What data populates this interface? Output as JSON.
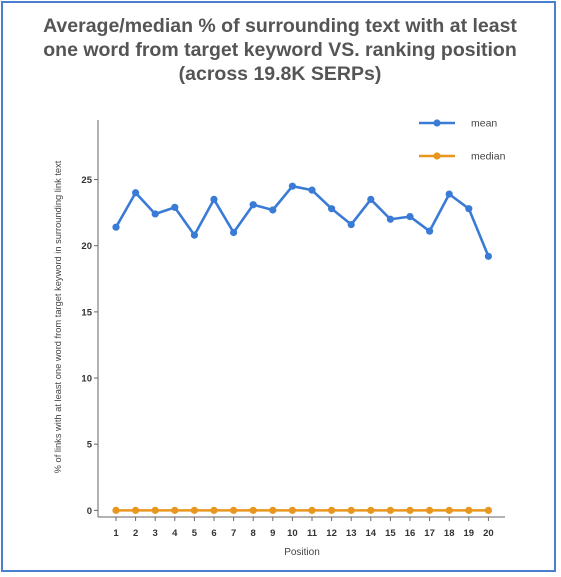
{
  "chart_data": {
    "type": "line",
    "title_lines": [
      "Average/median % of surrounding text with at least",
      "one word from target keyword VS. ranking position",
      "(across 19.8K SERPs)"
    ],
    "xlabel": "Position",
    "ylabel": "% of links with at least one word from target keyword in surrounding link text",
    "x": [
      1,
      2,
      3,
      4,
      5,
      6,
      7,
      8,
      9,
      10,
      11,
      12,
      13,
      14,
      15,
      16,
      17,
      18,
      19,
      20
    ],
    "yticks": [
      0,
      5,
      10,
      15,
      20,
      25
    ],
    "ylim": [
      -0.5,
      29.5
    ],
    "grid": false,
    "legend_position": "top-right",
    "series": [
      {
        "name": "mean",
        "color": "#3a7bd5",
        "values": [
          21.4,
          24.0,
          22.4,
          22.9,
          20.8,
          23.5,
          21.0,
          23.1,
          22.7,
          24.5,
          24.2,
          22.8,
          21.6,
          23.5,
          22.0,
          22.2,
          21.1,
          23.9,
          22.8,
          19.2
        ]
      },
      {
        "name": "median",
        "color": "#e8961e",
        "values": [
          0,
          0,
          0,
          0,
          0,
          0,
          0,
          0,
          0,
          0,
          0,
          0,
          0,
          0,
          0,
          0,
          0,
          0,
          0,
          0
        ]
      }
    ]
  }
}
